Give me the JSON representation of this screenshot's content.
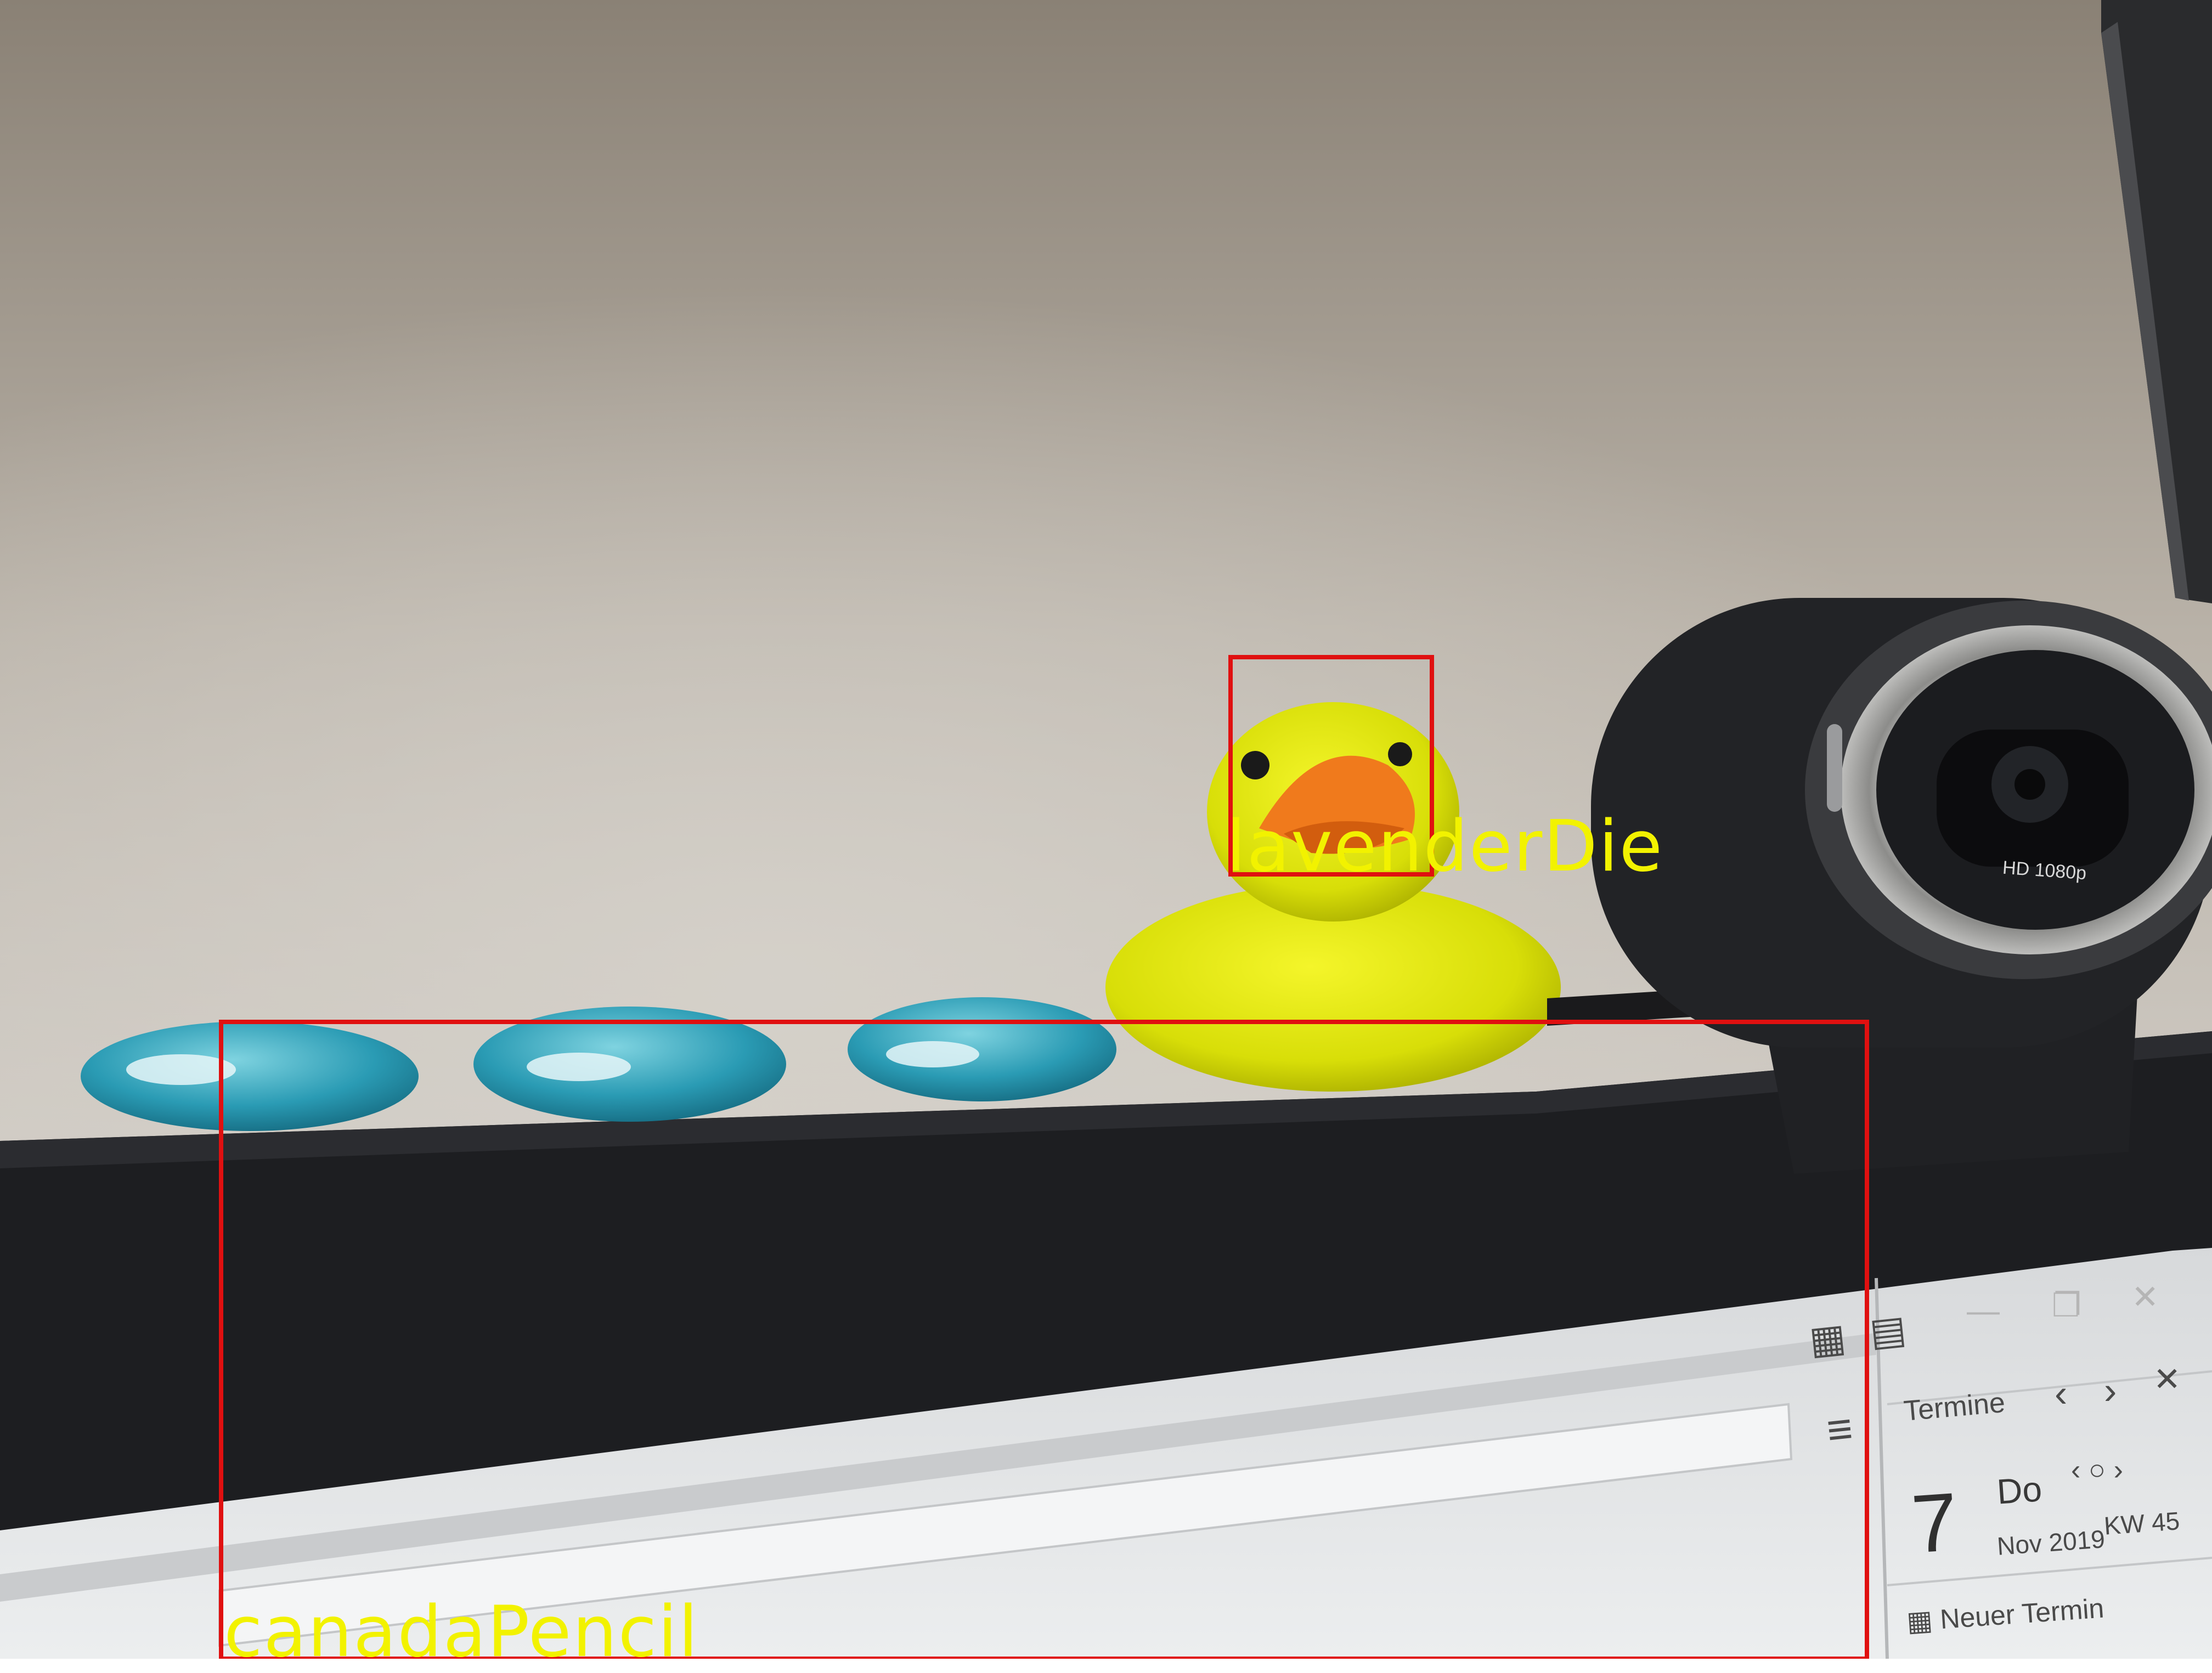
{
  "photo": {
    "webcam": {
      "model_text": "HD 1080p"
    },
    "objects": [
      {
        "name": "glass-pebble"
      },
      {
        "name": "glass-pebble"
      },
      {
        "name": "glass-pebble"
      },
      {
        "name": "rubber-duck"
      },
      {
        "name": "webcam"
      },
      {
        "name": "monitor"
      }
    ]
  },
  "annotations": {
    "color_box": "#e01010",
    "color_label": "#f2f200",
    "boxes": [
      {
        "label": "lavenderDie"
      },
      {
        "label": "canadaPencil"
      }
    ]
  },
  "monitor_screen": {
    "calendar_panel": {
      "title": "Termine",
      "day_number": "7",
      "weekday": "Do",
      "month_year": "Nov 2019",
      "week": "KW 45",
      "new_appointment": "Neuer Termin"
    },
    "icons": [
      "calendar-icon",
      "contacts-icon",
      "menu-icon",
      "chevron-left-icon",
      "chevron-right-icon",
      "close-icon",
      "minimize-icon",
      "restore-icon",
      "window-close-icon"
    ]
  }
}
